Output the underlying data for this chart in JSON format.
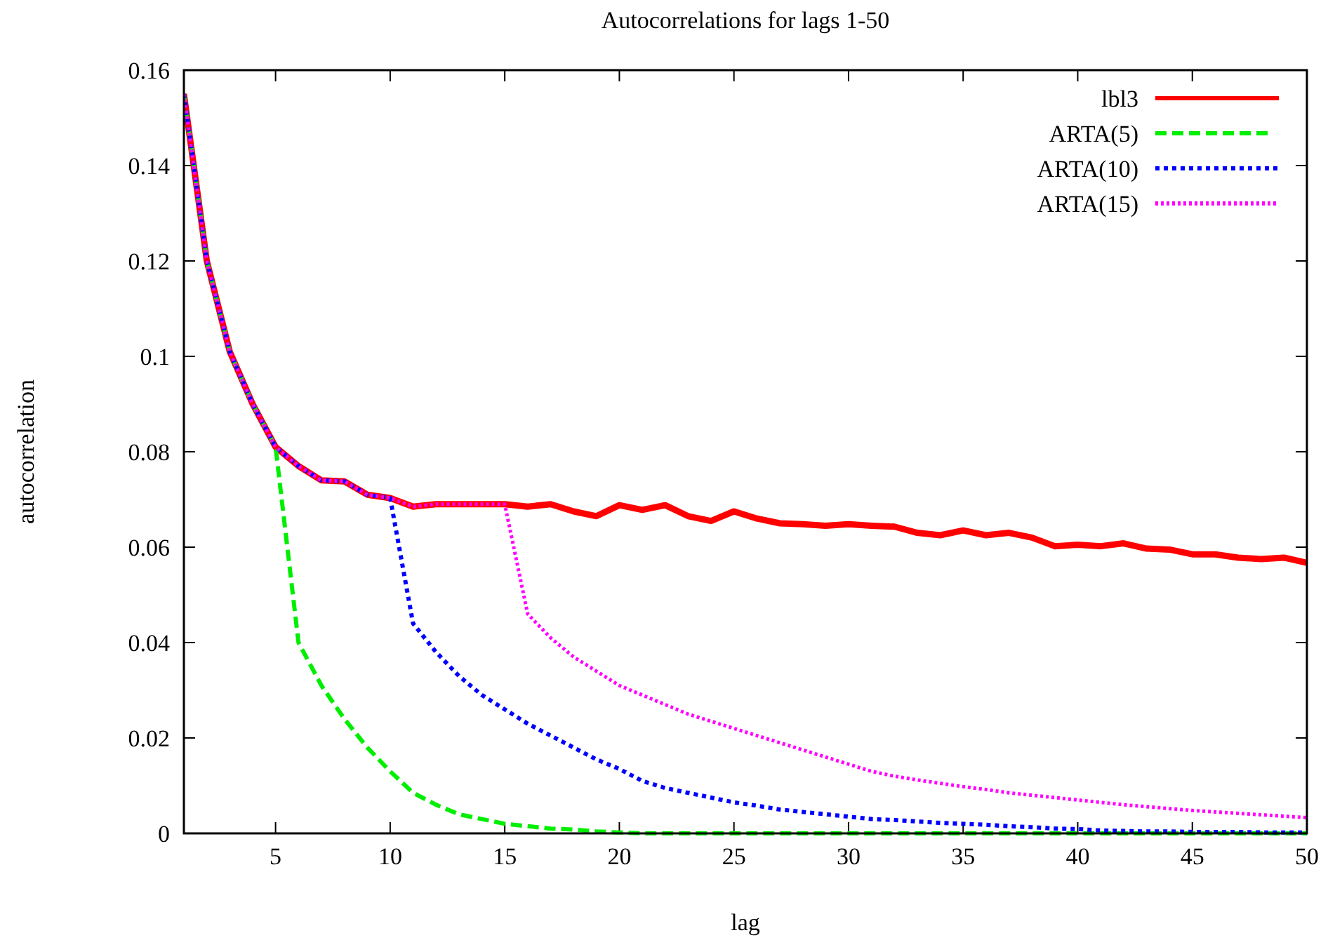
{
  "chart_data": {
    "type": "line",
    "title": "Autocorrelations for lags 1-50",
    "xlabel": "lag",
    "ylabel": "autocorrelation",
    "x": [
      1,
      2,
      3,
      4,
      5,
      6,
      7,
      8,
      9,
      10,
      11,
      12,
      13,
      14,
      15,
      16,
      17,
      18,
      19,
      20,
      21,
      22,
      23,
      24,
      25,
      26,
      27,
      28,
      29,
      30,
      31,
      32,
      33,
      34,
      35,
      36,
      37,
      38,
      39,
      40,
      41,
      42,
      43,
      44,
      45,
      46,
      47,
      48,
      49,
      50
    ],
    "xlim": [
      1,
      50
    ],
    "xticks": [
      5,
      10,
      15,
      20,
      25,
      30,
      35,
      40,
      45,
      50
    ],
    "ylim": [
      0,
      0.16
    ],
    "yticks": [
      0,
      0.02,
      0.04,
      0.06,
      0.08,
      0.1,
      0.12,
      0.14,
      0.16
    ],
    "grid": false,
    "legend": "top right",
    "series": [
      {
        "name": "lbl3",
        "color": "#ff0000",
        "line_style": "solid",
        "values": [
          0.155,
          0.12,
          0.101,
          0.09,
          0.081,
          0.077,
          0.074,
          0.0738,
          0.071,
          0.0703,
          0.0685,
          0.069,
          0.069,
          0.069,
          0.069,
          0.0685,
          0.069,
          0.0675,
          0.0665,
          0.0688,
          0.0678,
          0.0688,
          0.0665,
          0.0655,
          0.0675,
          0.066,
          0.065,
          0.0648,
          0.0645,
          0.0648,
          0.0645,
          0.0643,
          0.063,
          0.0625,
          0.0635,
          0.0625,
          0.063,
          0.062,
          0.0602,
          0.0605,
          0.0602,
          0.0608,
          0.0597,
          0.0595,
          0.0585,
          0.0585,
          0.0578,
          0.0575,
          0.0578,
          0.0567
        ]
      },
      {
        "name": "ARTA(5)",
        "color": "#00ee00",
        "line_style": "dashed",
        "values": [
          0.155,
          0.12,
          0.101,
          0.09,
          0.081,
          0.04,
          0.031,
          0.024,
          0.018,
          0.013,
          0.0085,
          0.006,
          0.004,
          0.003,
          0.002,
          0.0015,
          0.001,
          0.0008,
          0.0004,
          0.0002,
          0,
          0,
          0,
          0,
          0,
          0,
          0,
          0,
          0,
          0,
          0,
          0,
          0,
          0,
          0,
          0,
          0,
          0,
          0,
          0,
          0,
          0,
          0,
          0,
          0,
          0,
          0,
          0,
          0,
          0
        ]
      },
      {
        "name": "ARTA(10)",
        "color": "#0000ff",
        "line_style": "dotted",
        "values": [
          0.155,
          0.12,
          0.101,
          0.09,
          0.081,
          0.077,
          0.074,
          0.0738,
          0.071,
          0.0703,
          0.044,
          0.038,
          0.033,
          0.029,
          0.026,
          0.023,
          0.0205,
          0.018,
          0.0155,
          0.0135,
          0.011,
          0.0095,
          0.0085,
          0.0075,
          0.0065,
          0.0058,
          0.005,
          0.0045,
          0.004,
          0.0035,
          0.003,
          0.0028,
          0.0025,
          0.0022,
          0.002,
          0.0018,
          0.0015,
          0.0013,
          0.001,
          0.0009,
          0.0006,
          0.0005,
          0.0004,
          0.0004,
          0.0003,
          0.0003,
          0.0003,
          0.0002,
          0.0002,
          0.0002
        ]
      },
      {
        "name": "ARTA(15)",
        "color": "#ff00ff",
        "line_style": "dotted",
        "values": [
          0.155,
          0.12,
          0.101,
          0.09,
          0.081,
          0.077,
          0.074,
          0.0738,
          0.071,
          0.0703,
          0.0685,
          0.069,
          0.069,
          0.069,
          0.069,
          0.046,
          0.041,
          0.037,
          0.034,
          0.031,
          0.029,
          0.027,
          0.025,
          0.0235,
          0.022,
          0.0205,
          0.019,
          0.0175,
          0.016,
          0.0145,
          0.013,
          0.012,
          0.0112,
          0.0105,
          0.0098,
          0.0092,
          0.0085,
          0.008,
          0.0075,
          0.007,
          0.0065,
          0.006,
          0.0056,
          0.0052,
          0.0048,
          0.0045,
          0.0042,
          0.0039,
          0.0036,
          0.0033
        ]
      }
    ]
  }
}
